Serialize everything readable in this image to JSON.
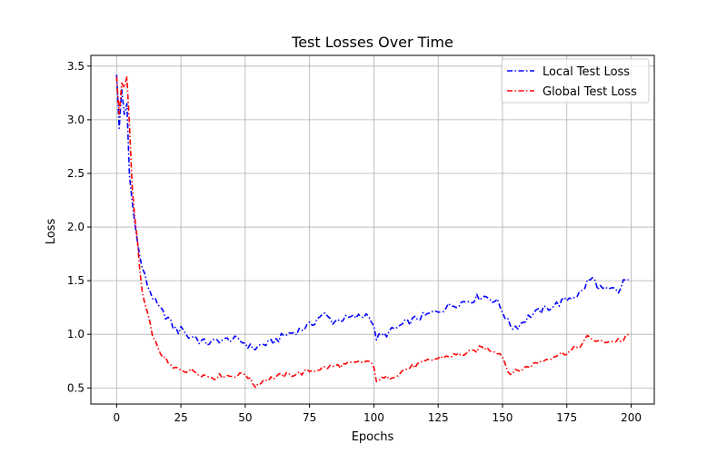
{
  "chart_data": {
    "type": "line",
    "title": "Test Losses Over Time",
    "xlabel": "Epochs",
    "ylabel": "Loss",
    "xlim": [
      -10,
      209
    ],
    "ylim": [
      0.35,
      3.6
    ],
    "x_ticks": [
      0,
      25,
      50,
      75,
      100,
      125,
      150,
      175,
      200
    ],
    "y_ticks": [
      0.5,
      1.0,
      1.5,
      2.0,
      2.5,
      3.0,
      3.5
    ],
    "x_tick_labels": [
      "0",
      "25",
      "50",
      "75",
      "100",
      "125",
      "150",
      "175",
      "200"
    ],
    "y_tick_labels": [
      "0.5",
      "1.0",
      "1.5",
      "2.0",
      "2.5",
      "3.0",
      "3.5"
    ],
    "grid": true,
    "legend_position": "upper right",
    "series": [
      {
        "name": "Local Test Loss",
        "color": "#0000ff",
        "linestyle": "dashdot",
        "anchors": [
          [
            0,
            3.42
          ],
          [
            1,
            2.92
          ],
          [
            2,
            3.28
          ],
          [
            3,
            3.05
          ],
          [
            4,
            3.15
          ],
          [
            5,
            2.48
          ],
          [
            6,
            2.25
          ],
          [
            7,
            2.05
          ],
          [
            8,
            1.88
          ],
          [
            9,
            1.72
          ],
          [
            10,
            1.62
          ],
          [
            12,
            1.46
          ],
          [
            14,
            1.35
          ],
          [
            16,
            1.26
          ],
          [
            18,
            1.2
          ],
          [
            20,
            1.15
          ],
          [
            22,
            1.07
          ],
          [
            24,
            1.03
          ],
          [
            26,
            1.06
          ],
          [
            28,
            0.96
          ],
          [
            30,
            0.99
          ],
          [
            32,
            0.94
          ],
          [
            35,
            0.92
          ],
          [
            38,
            0.93
          ],
          [
            40,
            0.95
          ],
          [
            42,
            0.94
          ],
          [
            44,
            0.96
          ],
          [
            46,
            0.95
          ],
          [
            48,
            0.94
          ],
          [
            50,
            0.92
          ],
          [
            52,
            0.88
          ],
          [
            54,
            0.87
          ],
          [
            56,
            0.9
          ],
          [
            58,
            0.91
          ],
          [
            60,
            0.92
          ],
          [
            63,
            0.96
          ],
          [
            66,
            1.0
          ],
          [
            69,
            1.02
          ],
          [
            72,
            1.05
          ],
          [
            75,
            1.08
          ],
          [
            77,
            1.12
          ],
          [
            79,
            1.17
          ],
          [
            81,
            1.18
          ],
          [
            84,
            1.12
          ],
          [
            87,
            1.14
          ],
          [
            90,
            1.15
          ],
          [
            93,
            1.16
          ],
          [
            96,
            1.17
          ],
          [
            98,
            1.2
          ],
          [
            100,
            1.05
          ],
          [
            101,
            0.97
          ],
          [
            103,
            0.98
          ],
          [
            106,
            1.02
          ],
          [
            109,
            1.06
          ],
          [
            112,
            1.1
          ],
          [
            115,
            1.13
          ],
          [
            118,
            1.16
          ],
          [
            121,
            1.18
          ],
          [
            124,
            1.21
          ],
          [
            127,
            1.24
          ],
          [
            130,
            1.27
          ],
          [
            133,
            1.29
          ],
          [
            136,
            1.31
          ],
          [
            139,
            1.33
          ],
          [
            142,
            1.36
          ],
          [
            145,
            1.34
          ],
          [
            148,
            1.3
          ],
          [
            150,
            1.22
          ],
          [
            152,
            1.12
          ],
          [
            154,
            1.07
          ],
          [
            156,
            1.08
          ],
          [
            158,
            1.12
          ],
          [
            161,
            1.18
          ],
          [
            164,
            1.21
          ],
          [
            167,
            1.24
          ],
          [
            170,
            1.27
          ],
          [
            173,
            1.3
          ],
          [
            176,
            1.34
          ],
          [
            179,
            1.37
          ],
          [
            181,
            1.4
          ],
          [
            183,
            1.49
          ],
          [
            185,
            1.52
          ],
          [
            187,
            1.45
          ],
          [
            189,
            1.42
          ],
          [
            191,
            1.4
          ],
          [
            193,
            1.42
          ],
          [
            195,
            1.38
          ],
          [
            197,
            1.5
          ],
          [
            199,
            1.51
          ]
        ]
      },
      {
        "name": "Global Test Loss",
        "color": "#ff0000",
        "linestyle": "dashdot",
        "anchors": [
          [
            0,
            3.4
          ],
          [
            1,
            3.05
          ],
          [
            2,
            3.34
          ],
          [
            3,
            3.3
          ],
          [
            4,
            3.4
          ],
          [
            5,
            2.95
          ],
          [
            6,
            2.4
          ],
          [
            7,
            2.1
          ],
          [
            8,
            1.9
          ],
          [
            9,
            1.6
          ],
          [
            10,
            1.38
          ],
          [
            12,
            1.18
          ],
          [
            14,
            1.0
          ],
          [
            16,
            0.86
          ],
          [
            18,
            0.8
          ],
          [
            20,
            0.73
          ],
          [
            22,
            0.68
          ],
          [
            24,
            0.68
          ],
          [
            26,
            0.67
          ],
          [
            28,
            0.66
          ],
          [
            30,
            0.66
          ],
          [
            32,
            0.64
          ],
          [
            35,
            0.61
          ],
          [
            38,
            0.6
          ],
          [
            40,
            0.61
          ],
          [
            42,
            0.62
          ],
          [
            44,
            0.61
          ],
          [
            46,
            0.62
          ],
          [
            48,
            0.62
          ],
          [
            50,
            0.64
          ],
          [
            52,
            0.57
          ],
          [
            54,
            0.52
          ],
          [
            56,
            0.56
          ],
          [
            58,
            0.58
          ],
          [
            60,
            0.59
          ],
          [
            63,
            0.61
          ],
          [
            66,
            0.62
          ],
          [
            69,
            0.63
          ],
          [
            72,
            0.64
          ],
          [
            75,
            0.66
          ],
          [
            77,
            0.67
          ],
          [
            79,
            0.68
          ],
          [
            81,
            0.69
          ],
          [
            84,
            0.7
          ],
          [
            87,
            0.71
          ],
          [
            90,
            0.72
          ],
          [
            93,
            0.73
          ],
          [
            96,
            0.74
          ],
          [
            98,
            0.75
          ],
          [
            100,
            0.68
          ],
          [
            101,
            0.58
          ],
          [
            103,
            0.58
          ],
          [
            106,
            0.6
          ],
          [
            109,
            0.63
          ],
          [
            112,
            0.67
          ],
          [
            115,
            0.7
          ],
          [
            118,
            0.72
          ],
          [
            121,
            0.75
          ],
          [
            124,
            0.77
          ],
          [
            127,
            0.79
          ],
          [
            130,
            0.8
          ],
          [
            133,
            0.81
          ],
          [
            136,
            0.82
          ],
          [
            139,
            0.84
          ],
          [
            142,
            0.88
          ],
          [
            145,
            0.86
          ],
          [
            148,
            0.84
          ],
          [
            150,
            0.8
          ],
          [
            152,
            0.66
          ],
          [
            154,
            0.64
          ],
          [
            156,
            0.66
          ],
          [
            158,
            0.68
          ],
          [
            161,
            0.71
          ],
          [
            164,
            0.74
          ],
          [
            167,
            0.77
          ],
          [
            170,
            0.8
          ],
          [
            173,
            0.82
          ],
          [
            176,
            0.84
          ],
          [
            179,
            0.88
          ],
          [
            181,
            0.91
          ],
          [
            183,
            0.97
          ],
          [
            185,
            0.96
          ],
          [
            187,
            0.93
          ],
          [
            189,
            0.93
          ],
          [
            191,
            0.94
          ],
          [
            193,
            0.93
          ],
          [
            195,
            0.95
          ],
          [
            197,
            0.94
          ],
          [
            199,
            1.0
          ]
        ]
      }
    ]
  }
}
